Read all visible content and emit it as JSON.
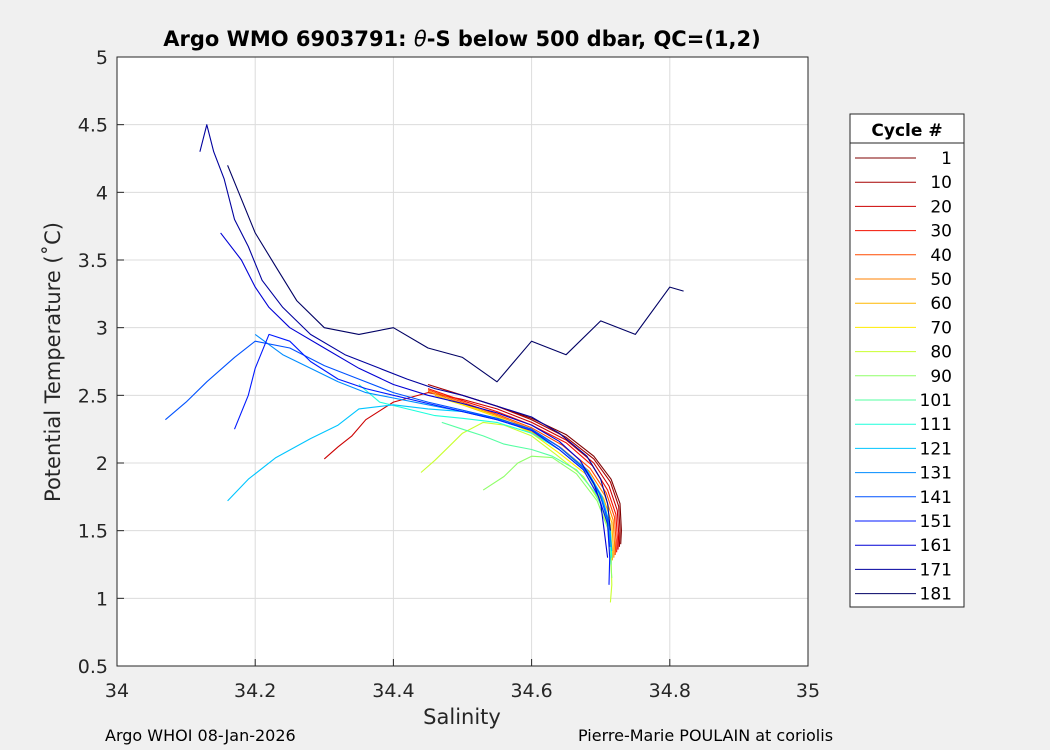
{
  "footer": {
    "left": "Argo WHOI 08-Jan-2026",
    "right": "Pierre-Marie POULAIN at coriolis"
  },
  "chart_data": {
    "type": "line",
    "title": "Argo WMO 6903791: θ-S below 500 dbar,  QC=(1,2)",
    "title_parts": [
      "Argo WMO 6903791: ",
      "θ",
      "-S below 500 dbar,  QC=(1,2)"
    ],
    "xlabel": "Salinity",
    "ylabel": "Potential Temperature (˚C)",
    "xlim": [
      34,
      35
    ],
    "ylim": [
      0.5,
      5
    ],
    "xticks": [
      34,
      34.2,
      34.4,
      34.6,
      34.8,
      35
    ],
    "xtick_labels": [
      "34",
      "34.2",
      "34.4",
      "34.6",
      "34.8",
      "35"
    ],
    "yticks": [
      0.5,
      1,
      1.5,
      2,
      2.5,
      3,
      3.5,
      4,
      4.5,
      5
    ],
    "ytick_labels": [
      "0.5",
      "1",
      "1.5",
      "2",
      "2.5",
      "3",
      "3.5",
      "4",
      "4.5",
      "5"
    ],
    "grid": true,
    "colormap": "jet",
    "legend": {
      "title": "Cycle #",
      "placement": "outside-right",
      "entries": [
        "1",
        "10",
        "20",
        "30",
        "40",
        "50",
        "60",
        "70",
        "80",
        "90",
        "101",
        "111",
        "121",
        "131",
        "141",
        "151",
        "161",
        "171",
        "181"
      ],
      "colors": [
        "#7f0000",
        "#a50000",
        "#cc0000",
        "#f31000",
        "#ff4a00",
        "#ff8200",
        "#ffb700",
        "#ffec00",
        "#c9ff2f",
        "#8fff68",
        "#55ffa2",
        "#1bffdc",
        "#00c5ff",
        "#008cff",
        "#0052ff",
        "#0019ff",
        "#0000d5",
        "#00009e",
        "#000064"
      ]
    },
    "series": [
      {
        "name": "1",
        "color": "#7f0000",
        "points": [
          [
            34.55,
            2.42
          ],
          [
            34.6,
            2.33
          ],
          [
            34.65,
            2.21
          ],
          [
            34.69,
            2.05
          ],
          [
            34.715,
            1.88
          ],
          [
            34.728,
            1.7
          ],
          [
            34.73,
            1.5
          ],
          [
            34.729,
            1.4
          ]
        ]
      },
      {
        "name": "10",
        "color": "#a50000",
        "points": [
          [
            34.45,
            2.58
          ],
          [
            34.5,
            2.5
          ],
          [
            34.55,
            2.42
          ],
          [
            34.6,
            2.32
          ],
          [
            34.65,
            2.19
          ],
          [
            34.69,
            2.03
          ],
          [
            34.714,
            1.86
          ],
          [
            34.726,
            1.68
          ],
          [
            34.728,
            1.5
          ],
          [
            34.727,
            1.38
          ]
        ]
      },
      {
        "name": "20",
        "color": "#cc0000",
        "points": [
          [
            34.3,
            2.03
          ],
          [
            34.32,
            2.12
          ],
          [
            34.34,
            2.2
          ],
          [
            34.36,
            2.32
          ],
          [
            34.4,
            2.45
          ],
          [
            34.45,
            2.52
          ],
          [
            34.5,
            2.47
          ],
          [
            34.55,
            2.4
          ],
          [
            34.6,
            2.3
          ],
          [
            34.65,
            2.17
          ],
          [
            34.69,
            2.0
          ],
          [
            34.712,
            1.83
          ],
          [
            34.724,
            1.65
          ],
          [
            34.726,
            1.48
          ],
          [
            34.725,
            1.36
          ]
        ]
      },
      {
        "name": "30",
        "color": "#f31000",
        "points": [
          [
            34.45,
            2.55
          ],
          [
            34.5,
            2.46
          ],
          [
            34.55,
            2.38
          ],
          [
            34.6,
            2.28
          ],
          [
            34.65,
            2.15
          ],
          [
            34.688,
            1.98
          ],
          [
            34.71,
            1.8
          ],
          [
            34.722,
            1.62
          ],
          [
            34.724,
            1.45
          ],
          [
            34.723,
            1.34
          ]
        ]
      },
      {
        "name": "40",
        "color": "#ff4a00",
        "points": [
          [
            34.45,
            2.54
          ],
          [
            34.5,
            2.45
          ],
          [
            34.55,
            2.36
          ],
          [
            34.6,
            2.26
          ],
          [
            34.645,
            2.13
          ],
          [
            34.685,
            1.96
          ],
          [
            34.708,
            1.78
          ],
          [
            34.72,
            1.6
          ],
          [
            34.722,
            1.43
          ],
          [
            34.721,
            1.32
          ]
        ]
      },
      {
        "name": "50",
        "color": "#ff8200",
        "points": [
          [
            34.45,
            2.53
          ],
          [
            34.5,
            2.44
          ],
          [
            34.55,
            2.35
          ],
          [
            34.6,
            2.25
          ],
          [
            34.643,
            2.11
          ],
          [
            34.683,
            1.94
          ],
          [
            34.706,
            1.76
          ],
          [
            34.718,
            1.58
          ],
          [
            34.72,
            1.41
          ],
          [
            34.719,
            1.3
          ]
        ]
      },
      {
        "name": "60",
        "color": "#ffb700",
        "points": [
          [
            34.46,
            2.5
          ],
          [
            34.5,
            2.43
          ],
          [
            34.55,
            2.34
          ],
          [
            34.6,
            2.23
          ],
          [
            34.64,
            2.1
          ],
          [
            34.68,
            1.93
          ],
          [
            34.704,
            1.74
          ],
          [
            34.716,
            1.56
          ],
          [
            34.718,
            1.39
          ],
          [
            34.717,
            1.28
          ]
        ]
      },
      {
        "name": "70",
        "color": "#ffec00",
        "points": [
          [
            34.48,
            2.46
          ],
          [
            34.52,
            2.4
          ],
          [
            34.56,
            2.32
          ],
          [
            34.6,
            2.22
          ],
          [
            34.638,
            2.08
          ],
          [
            34.678,
            1.92
          ],
          [
            34.702,
            1.72
          ],
          [
            34.714,
            1.54
          ],
          [
            34.716,
            1.37
          ],
          [
            34.715,
            1.26
          ]
        ]
      },
      {
        "name": "80",
        "color": "#c9ff2f",
        "points": [
          [
            34.44,
            1.93
          ],
          [
            34.46,
            2.02
          ],
          [
            34.48,
            2.12
          ],
          [
            34.5,
            2.22
          ],
          [
            34.53,
            2.3
          ],
          [
            34.56,
            2.28
          ],
          [
            34.6,
            2.2
          ],
          [
            34.636,
            2.06
          ],
          [
            34.675,
            1.9
          ],
          [
            34.7,
            1.7
          ],
          [
            34.712,
            1.5
          ],
          [
            34.715,
            1.3
          ],
          [
            34.716,
            1.1
          ],
          [
            34.714,
            0.97
          ]
        ]
      },
      {
        "name": "90",
        "color": "#8fff68",
        "points": [
          [
            34.53,
            1.8
          ],
          [
            34.56,
            1.9
          ],
          [
            34.58,
            2.0
          ],
          [
            34.6,
            2.05
          ],
          [
            34.63,
            2.04
          ],
          [
            34.665,
            1.92
          ],
          [
            34.695,
            1.72
          ],
          [
            34.71,
            1.52
          ],
          [
            34.714,
            1.3
          ],
          [
            34.716,
            1.15
          ]
        ]
      },
      {
        "name": "101",
        "color": "#55ffa2",
        "points": [
          [
            34.47,
            2.3
          ],
          [
            34.5,
            2.25
          ],
          [
            34.53,
            2.2
          ],
          [
            34.56,
            2.14
          ],
          [
            34.6,
            2.1
          ],
          [
            34.63,
            2.05
          ],
          [
            34.665,
            1.95
          ],
          [
            34.692,
            1.78
          ],
          [
            34.708,
            1.6
          ],
          [
            34.714,
            1.4
          ],
          [
            34.715,
            1.25
          ]
        ]
      },
      {
        "name": "111",
        "color": "#1bffdc",
        "points": [
          [
            34.35,
            2.58
          ],
          [
            34.38,
            2.45
          ],
          [
            34.42,
            2.4
          ],
          [
            34.46,
            2.35
          ],
          [
            34.5,
            2.33
          ],
          [
            34.55,
            2.3
          ],
          [
            34.6,
            2.22
          ],
          [
            34.64,
            2.1
          ],
          [
            34.68,
            1.93
          ],
          [
            34.703,
            1.72
          ],
          [
            34.714,
            1.5
          ],
          [
            34.716,
            1.3
          ]
        ]
      },
      {
        "name": "121",
        "color": "#00c5ff",
        "points": [
          [
            34.16,
            1.72
          ],
          [
            34.19,
            1.88
          ],
          [
            34.23,
            2.04
          ],
          [
            34.28,
            2.18
          ],
          [
            34.32,
            2.28
          ],
          [
            34.35,
            2.4
          ],
          [
            34.4,
            2.43
          ],
          [
            34.45,
            2.4
          ],
          [
            34.5,
            2.38
          ],
          [
            34.55,
            2.33
          ],
          [
            34.6,
            2.25
          ],
          [
            34.64,
            2.12
          ],
          [
            34.68,
            1.95
          ],
          [
            34.702,
            1.75
          ],
          [
            34.713,
            1.55
          ],
          [
            34.716,
            1.35
          ]
        ]
      },
      {
        "name": "131",
        "color": "#008cff",
        "points": [
          [
            34.2,
            2.95
          ],
          [
            34.24,
            2.8
          ],
          [
            34.28,
            2.7
          ],
          [
            34.32,
            2.6
          ],
          [
            34.36,
            2.52
          ],
          [
            34.4,
            2.48
          ],
          [
            34.45,
            2.43
          ],
          [
            34.5,
            2.38
          ],
          [
            34.55,
            2.32
          ],
          [
            34.6,
            2.24
          ],
          [
            34.64,
            2.12
          ],
          [
            34.678,
            1.95
          ],
          [
            34.7,
            1.76
          ],
          [
            34.712,
            1.56
          ],
          [
            34.715,
            1.38
          ]
        ]
      },
      {
        "name": "141",
        "color": "#0052ff",
        "points": [
          [
            34.07,
            2.32
          ],
          [
            34.1,
            2.45
          ],
          [
            34.13,
            2.6
          ],
          [
            34.17,
            2.78
          ],
          [
            34.2,
            2.9
          ],
          [
            34.25,
            2.85
          ],
          [
            34.3,
            2.72
          ],
          [
            34.35,
            2.62
          ],
          [
            34.4,
            2.52
          ],
          [
            34.45,
            2.45
          ],
          [
            34.5,
            2.39
          ],
          [
            34.55,
            2.33
          ],
          [
            34.6,
            2.25
          ],
          [
            34.64,
            2.12
          ],
          [
            34.676,
            1.96
          ],
          [
            34.698,
            1.78
          ],
          [
            34.71,
            1.58
          ],
          [
            34.713,
            1.38
          ]
        ]
      },
      {
        "name": "151",
        "color": "#0019ff",
        "points": [
          [
            34.17,
            2.25
          ],
          [
            34.19,
            2.5
          ],
          [
            34.2,
            2.7
          ],
          [
            34.22,
            2.95
          ],
          [
            34.25,
            2.9
          ],
          [
            34.28,
            2.75
          ],
          [
            34.32,
            2.62
          ],
          [
            34.36,
            2.55
          ],
          [
            34.4,
            2.5
          ],
          [
            34.45,
            2.44
          ],
          [
            34.5,
            2.38
          ],
          [
            34.55,
            2.32
          ],
          [
            34.6,
            2.24
          ],
          [
            34.64,
            2.1
          ],
          [
            34.675,
            1.95
          ],
          [
            34.697,
            1.75
          ],
          [
            34.71,
            1.55
          ],
          [
            34.713,
            1.3
          ],
          [
            34.712,
            1.1
          ]
        ]
      },
      {
        "name": "161",
        "color": "#0000d5",
        "points": [
          [
            34.15,
            3.7
          ],
          [
            34.18,
            3.5
          ],
          [
            34.2,
            3.3
          ],
          [
            34.22,
            3.15
          ],
          [
            34.25,
            3.0
          ],
          [
            34.3,
            2.85
          ],
          [
            34.35,
            2.7
          ],
          [
            34.4,
            2.58
          ],
          [
            34.45,
            2.5
          ],
          [
            34.5,
            2.44
          ],
          [
            34.55,
            2.37
          ],
          [
            34.6,
            2.28
          ],
          [
            34.64,
            2.16
          ],
          [
            34.67,
            2.02
          ],
          [
            34.69,
            1.85
          ],
          [
            34.7,
            1.7
          ],
          [
            34.705,
            1.5
          ],
          [
            34.71,
            1.3
          ]
        ]
      },
      {
        "name": "171",
        "color": "#00009e",
        "points": [
          [
            34.12,
            4.3
          ],
          [
            34.13,
            4.5
          ],
          [
            34.14,
            4.3
          ],
          [
            34.155,
            4.1
          ],
          [
            34.17,
            3.8
          ],
          [
            34.19,
            3.6
          ],
          [
            34.21,
            3.35
          ],
          [
            34.24,
            3.15
          ],
          [
            34.28,
            2.95
          ],
          [
            34.33,
            2.8
          ],
          [
            34.38,
            2.7
          ],
          [
            34.42,
            2.62
          ],
          [
            34.46,
            2.55
          ],
          [
            34.5,
            2.5
          ],
          [
            34.55,
            2.42
          ],
          [
            34.6,
            2.34
          ],
          [
            34.64,
            2.22
          ],
          [
            34.68,
            2.05
          ],
          [
            34.7,
            1.88
          ],
          [
            34.71,
            1.7
          ],
          [
            34.714,
            1.5
          ]
        ]
      },
      {
        "name": "181",
        "color": "#000064",
        "points": [
          [
            34.16,
            4.2
          ],
          [
            34.18,
            3.95
          ],
          [
            34.2,
            3.7
          ],
          [
            34.23,
            3.45
          ],
          [
            34.26,
            3.2
          ],
          [
            34.3,
            3.0
          ],
          [
            34.35,
            2.95
          ],
          [
            34.4,
            3.0
          ],
          [
            34.45,
            2.85
          ],
          [
            34.5,
            2.78
          ],
          [
            34.55,
            2.6
          ],
          [
            34.6,
            2.9
          ],
          [
            34.65,
            2.8
          ],
          [
            34.7,
            3.05
          ],
          [
            34.75,
            2.95
          ],
          [
            34.8,
            3.3
          ],
          [
            34.82,
            3.27
          ]
        ]
      }
    ]
  }
}
